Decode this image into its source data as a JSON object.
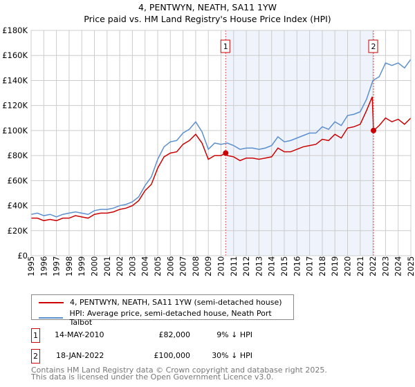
{
  "chart_data": {
    "type": "line",
    "title": "4, PENTWYN, NEATH, SA11 1YW",
    "subtitle": "Price paid vs. HM Land Registry's House Price Index (HPI)",
    "xlim": [
      1995,
      2025
    ],
    "ylim": [
      0,
      180000
    ],
    "y_ticks": [
      "£0",
      "£20K",
      "£40K",
      "£60K",
      "£80K",
      "£100K",
      "£120K",
      "£140K",
      "£160K",
      "£180K"
    ],
    "x_ticks": [
      "1995",
      "1996",
      "1997",
      "1998",
      "1999",
      "2000",
      "2001",
      "2002",
      "2003",
      "2004",
      "2005",
      "2006",
      "2007",
      "2008",
      "2009",
      "2010",
      "2011",
      "2012",
      "2013",
      "2014",
      "2015",
      "2016",
      "2017",
      "2018",
      "2019",
      "2020",
      "2021",
      "2022",
      "2023",
      "2024",
      "2025"
    ],
    "grid": true,
    "shaded_range": [
      2010.37,
      2022.05
    ],
    "series": [
      {
        "name": "4, PENTWYN, NEATH, SA11 1YW (semi-detached house)",
        "color": "#cc0000",
        "x": [
          1995,
          1995.5,
          1996,
          1996.5,
          1997,
          1997.5,
          1998,
          1998.5,
          1999,
          1999.5,
          2000,
          2000.5,
          2001,
          2001.5,
          2002,
          2002.5,
          2003,
          2003.5,
          2004,
          2004.5,
          2005,
          2005.5,
          2006,
          2006.5,
          2007,
          2007.5,
          2008,
          2008.5,
          2009,
          2009.5,
          2010,
          2010.37,
          2010.5,
          2011,
          2011.5,
          2012,
          2012.5,
          2013,
          2013.5,
          2014,
          2014.5,
          2015,
          2015.5,
          2016,
          2016.5,
          2017,
          2017.5,
          2018,
          2018.5,
          2019,
          2019.5,
          2020,
          2020.5,
          2021,
          2021.5,
          2021.95,
          2022.05,
          2022.5,
          2023,
          2023.5,
          2024,
          2024.5,
          2025
        ],
        "y": [
          30000,
          30000,
          28000,
          29000,
          28000,
          30000,
          30000,
          32000,
          31000,
          30000,
          33000,
          34000,
          34000,
          35000,
          37000,
          38000,
          40000,
          44000,
          52000,
          57000,
          70000,
          79000,
          82000,
          83000,
          89000,
          92000,
          97000,
          90000,
          77000,
          80000,
          80000,
          82000,
          80000,
          79000,
          76000,
          78000,
          78000,
          77000,
          78000,
          79000,
          86000,
          83000,
          83000,
          85000,
          87000,
          88000,
          89000,
          93000,
          92000,
          97000,
          94000,
          102000,
          103000,
          105000,
          116000,
          127000,
          100000,
          104000,
          110000,
          107000,
          109000,
          105000,
          110000
        ]
      },
      {
        "name": "HPI: Average price, semi-detached house, Neath Port Talbot",
        "color": "#5b8fd0",
        "x": [
          1995,
          1995.5,
          1996,
          1996.5,
          1997,
          1997.5,
          1998,
          1998.5,
          1999,
          1999.5,
          2000,
          2000.5,
          2001,
          2001.5,
          2002,
          2002.5,
          2003,
          2003.5,
          2004,
          2004.5,
          2005,
          2005.5,
          2006,
          2006.5,
          2007,
          2007.5,
          2008,
          2008.5,
          2009,
          2009.5,
          2010,
          2010.5,
          2011,
          2011.5,
          2012,
          2012.5,
          2013,
          2013.5,
          2014,
          2014.5,
          2015,
          2015.5,
          2016,
          2016.5,
          2017,
          2017.5,
          2018,
          2018.5,
          2019,
          2019.5,
          2020,
          2020.5,
          2021,
          2021.5,
          2022,
          2022.5,
          2023,
          2023.5,
          2024,
          2024.5,
          2025
        ],
        "y": [
          33000,
          34000,
          32000,
          33000,
          31000,
          33000,
          34000,
          35000,
          34000,
          33000,
          36000,
          37000,
          37000,
          38000,
          40000,
          41000,
          43000,
          47000,
          56000,
          63000,
          77000,
          87000,
          91000,
          92000,
          98000,
          101000,
          107000,
          99000,
          85000,
          90000,
          89000,
          90000,
          88000,
          85000,
          86000,
          86000,
          85000,
          86000,
          88000,
          95000,
          91000,
          92000,
          94000,
          96000,
          98000,
          98000,
          103000,
          101000,
          107000,
          104000,
          112000,
          113000,
          115000,
          125000,
          140000,
          143000,
          154000,
          152000,
          154000,
          150000,
          157000
        ]
      }
    ],
    "sales": [
      {
        "label": "1",
        "x": 2010.37,
        "y": 82000
      },
      {
        "label": "2",
        "x": 2022.05,
        "y": 100000
      }
    ]
  },
  "legend": {
    "property": "4, PENTWYN, NEATH, SA11 1YW (semi-detached house)",
    "hpi": "HPI: Average price, semi-detached house, Neath Port Talbot"
  },
  "table": [
    {
      "num": "1",
      "date": "14-MAY-2010",
      "price": "£82,000",
      "diff": "9% ↓ HPI"
    },
    {
      "num": "2",
      "date": "18-JAN-2022",
      "price": "£100,000",
      "diff": "30% ↓ HPI"
    }
  ],
  "footer": {
    "line1": "Contains HM Land Registry data © Crown copyright and database right 2025.",
    "line2": "This data is licensed under the Open Government Licence v3.0."
  }
}
